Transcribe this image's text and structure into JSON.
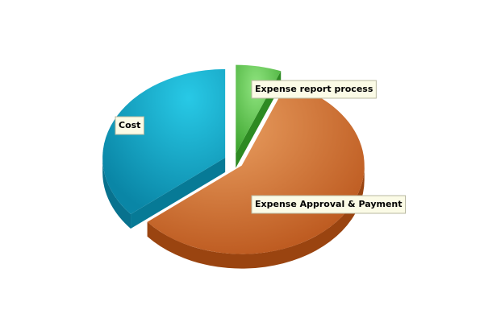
{
  "chart_data": {
    "type": "pie",
    "title": "",
    "three_d": true,
    "exploded": true,
    "legend": "none",
    "slices": [
      {
        "label": "Expense report process",
        "value": 6,
        "color": "#59c24c"
      },
      {
        "label": "Expense Approval & Payment",
        "value": 58,
        "color": "#d86f24"
      },
      {
        "label": "Cost",
        "value": 36,
        "color": "#1aa9c8"
      }
    ]
  }
}
